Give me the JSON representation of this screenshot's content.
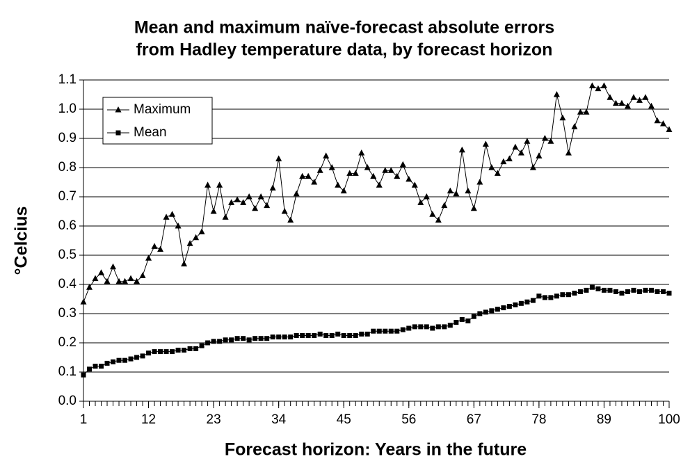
{
  "chart_data": {
    "type": "line",
    "title": [
      "Mean and maximum naïve-forecast absolute errors",
      "from Hadley temperature data, by forecast horizon"
    ],
    "xlabel": "Forecast horizon: Years in the future",
    "ylabel": "°Celcius",
    "x": [
      1,
      2,
      3,
      4,
      5,
      6,
      7,
      8,
      9,
      10,
      11,
      12,
      13,
      14,
      15,
      16,
      17,
      18,
      19,
      20,
      21,
      22,
      23,
      24,
      25,
      26,
      27,
      28,
      29,
      30,
      31,
      32,
      33,
      34,
      35,
      36,
      37,
      38,
      39,
      40,
      41,
      42,
      43,
      44,
      45,
      46,
      47,
      48,
      49,
      50,
      51,
      52,
      53,
      54,
      55,
      56,
      57,
      58,
      59,
      60,
      61,
      62,
      63,
      64,
      65,
      66,
      67,
      68,
      69,
      70,
      71,
      72,
      73,
      74,
      75,
      76,
      77,
      78,
      79,
      80,
      81,
      82,
      83,
      84,
      85,
      86,
      87,
      88,
      89,
      90,
      91,
      92,
      93,
      94,
      95,
      96,
      97,
      98,
      99,
      100
    ],
    "xlim": [
      1,
      100
    ],
    "xticks": [
      1,
      12,
      23,
      34,
      45,
      56,
      67,
      78,
      89,
      100
    ],
    "ylim": [
      0,
      1.1
    ],
    "yticks": [
      {
        "value": 0,
        "label": "0.0"
      },
      0.1,
      0.2,
      0.3,
      0.4,
      0.5,
      0.6,
      0.7,
      0.8,
      0.9,
      {
        "value": 1,
        "label": "1.0"
      },
      1.1
    ],
    "grid": true,
    "legend": "upper left",
    "series": [
      {
        "name": "Maximum",
        "color": "#000000",
        "marker": "triangle",
        "values": [
          0.34,
          0.39,
          0.42,
          0.44,
          0.41,
          0.46,
          0.41,
          0.41,
          0.42,
          0.41,
          0.43,
          0.49,
          0.53,
          0.52,
          0.63,
          0.64,
          0.6,
          0.47,
          0.54,
          0.56,
          0.58,
          0.74,
          0.65,
          0.74,
          0.63,
          0.68,
          0.69,
          0.68,
          0.7,
          0.66,
          0.7,
          0.67,
          0.73,
          0.83,
          0.65,
          0.62,
          0.71,
          0.77,
          0.77,
          0.75,
          0.79,
          0.84,
          0.8,
          0.74,
          0.72,
          0.78,
          0.78,
          0.85,
          0.8,
          0.77,
          0.74,
          0.79,
          0.79,
          0.77,
          0.81,
          0.76,
          0.74,
          0.68,
          0.7,
          0.64,
          0.62,
          0.67,
          0.72,
          0.71,
          0.86,
          0.72,
          0.66,
          0.75,
          0.88,
          0.8,
          0.78,
          0.82,
          0.83,
          0.87,
          0.85,
          0.89,
          0.8,
          0.84,
          0.9,
          0.89,
          1.05,
          0.97,
          0.85,
          0.94,
          0.99,
          0.99,
          1.08,
          1.07,
          1.08,
          1.04,
          1.02,
          1.02,
          1.01,
          1.04,
          1.03,
          1.04,
          1.01,
          0.96,
          0.95,
          0.93
        ]
      },
      {
        "name": "Mean",
        "color": "#000000",
        "marker": "square",
        "values": [
          0.09,
          0.11,
          0.12,
          0.12,
          0.13,
          0.135,
          0.14,
          0.14,
          0.145,
          0.15,
          0.155,
          0.165,
          0.17,
          0.17,
          0.17,
          0.17,
          0.175,
          0.175,
          0.18,
          0.18,
          0.19,
          0.2,
          0.205,
          0.205,
          0.21,
          0.21,
          0.215,
          0.215,
          0.21,
          0.215,
          0.215,
          0.215,
          0.22,
          0.22,
          0.22,
          0.22,
          0.225,
          0.225,
          0.225,
          0.225,
          0.23,
          0.225,
          0.225,
          0.23,
          0.225,
          0.225,
          0.225,
          0.23,
          0.23,
          0.24,
          0.24,
          0.24,
          0.24,
          0.24,
          0.245,
          0.25,
          0.255,
          0.255,
          0.255,
          0.25,
          0.255,
          0.255,
          0.26,
          0.27,
          0.28,
          0.275,
          0.29,
          0.3,
          0.305,
          0.31,
          0.315,
          0.32,
          0.325,
          0.33,
          0.335,
          0.34,
          0.345,
          0.36,
          0.355,
          0.355,
          0.36,
          0.365,
          0.365,
          0.37,
          0.375,
          0.38,
          0.39,
          0.385,
          0.38,
          0.38,
          0.375,
          0.37,
          0.375,
          0.38,
          0.375,
          0.38,
          0.38,
          0.375,
          0.375,
          0.37
        ]
      }
    ]
  }
}
